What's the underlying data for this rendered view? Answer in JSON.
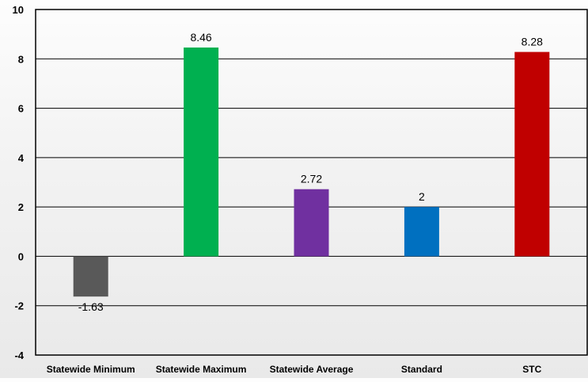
{
  "chart_data": {
    "type": "bar",
    "title": "",
    "xlabel": "",
    "ylabel": "",
    "categories": [
      "Statewide Minimum",
      "Statewide Maximum",
      "Statewide Average",
      "Standard",
      "STC"
    ],
    "values": [
      -1.63,
      8.46,
      2.72,
      2,
      8.28
    ],
    "data_labels": [
      "-1.63",
      "8.46",
      "2.72",
      "2",
      "8.28"
    ],
    "colors": [
      "#595959",
      "#00b050",
      "#7030a0",
      "#0070c0",
      "#c00000"
    ],
    "ylim": [
      -4,
      10
    ],
    "yticks": [
      -4,
      -2,
      0,
      2,
      4,
      6,
      8,
      10
    ],
    "ytick_labels": [
      "-4",
      "-2",
      "0",
      "2",
      "4",
      "6",
      "8",
      "10"
    ],
    "grid": true,
    "legend": "none"
  }
}
